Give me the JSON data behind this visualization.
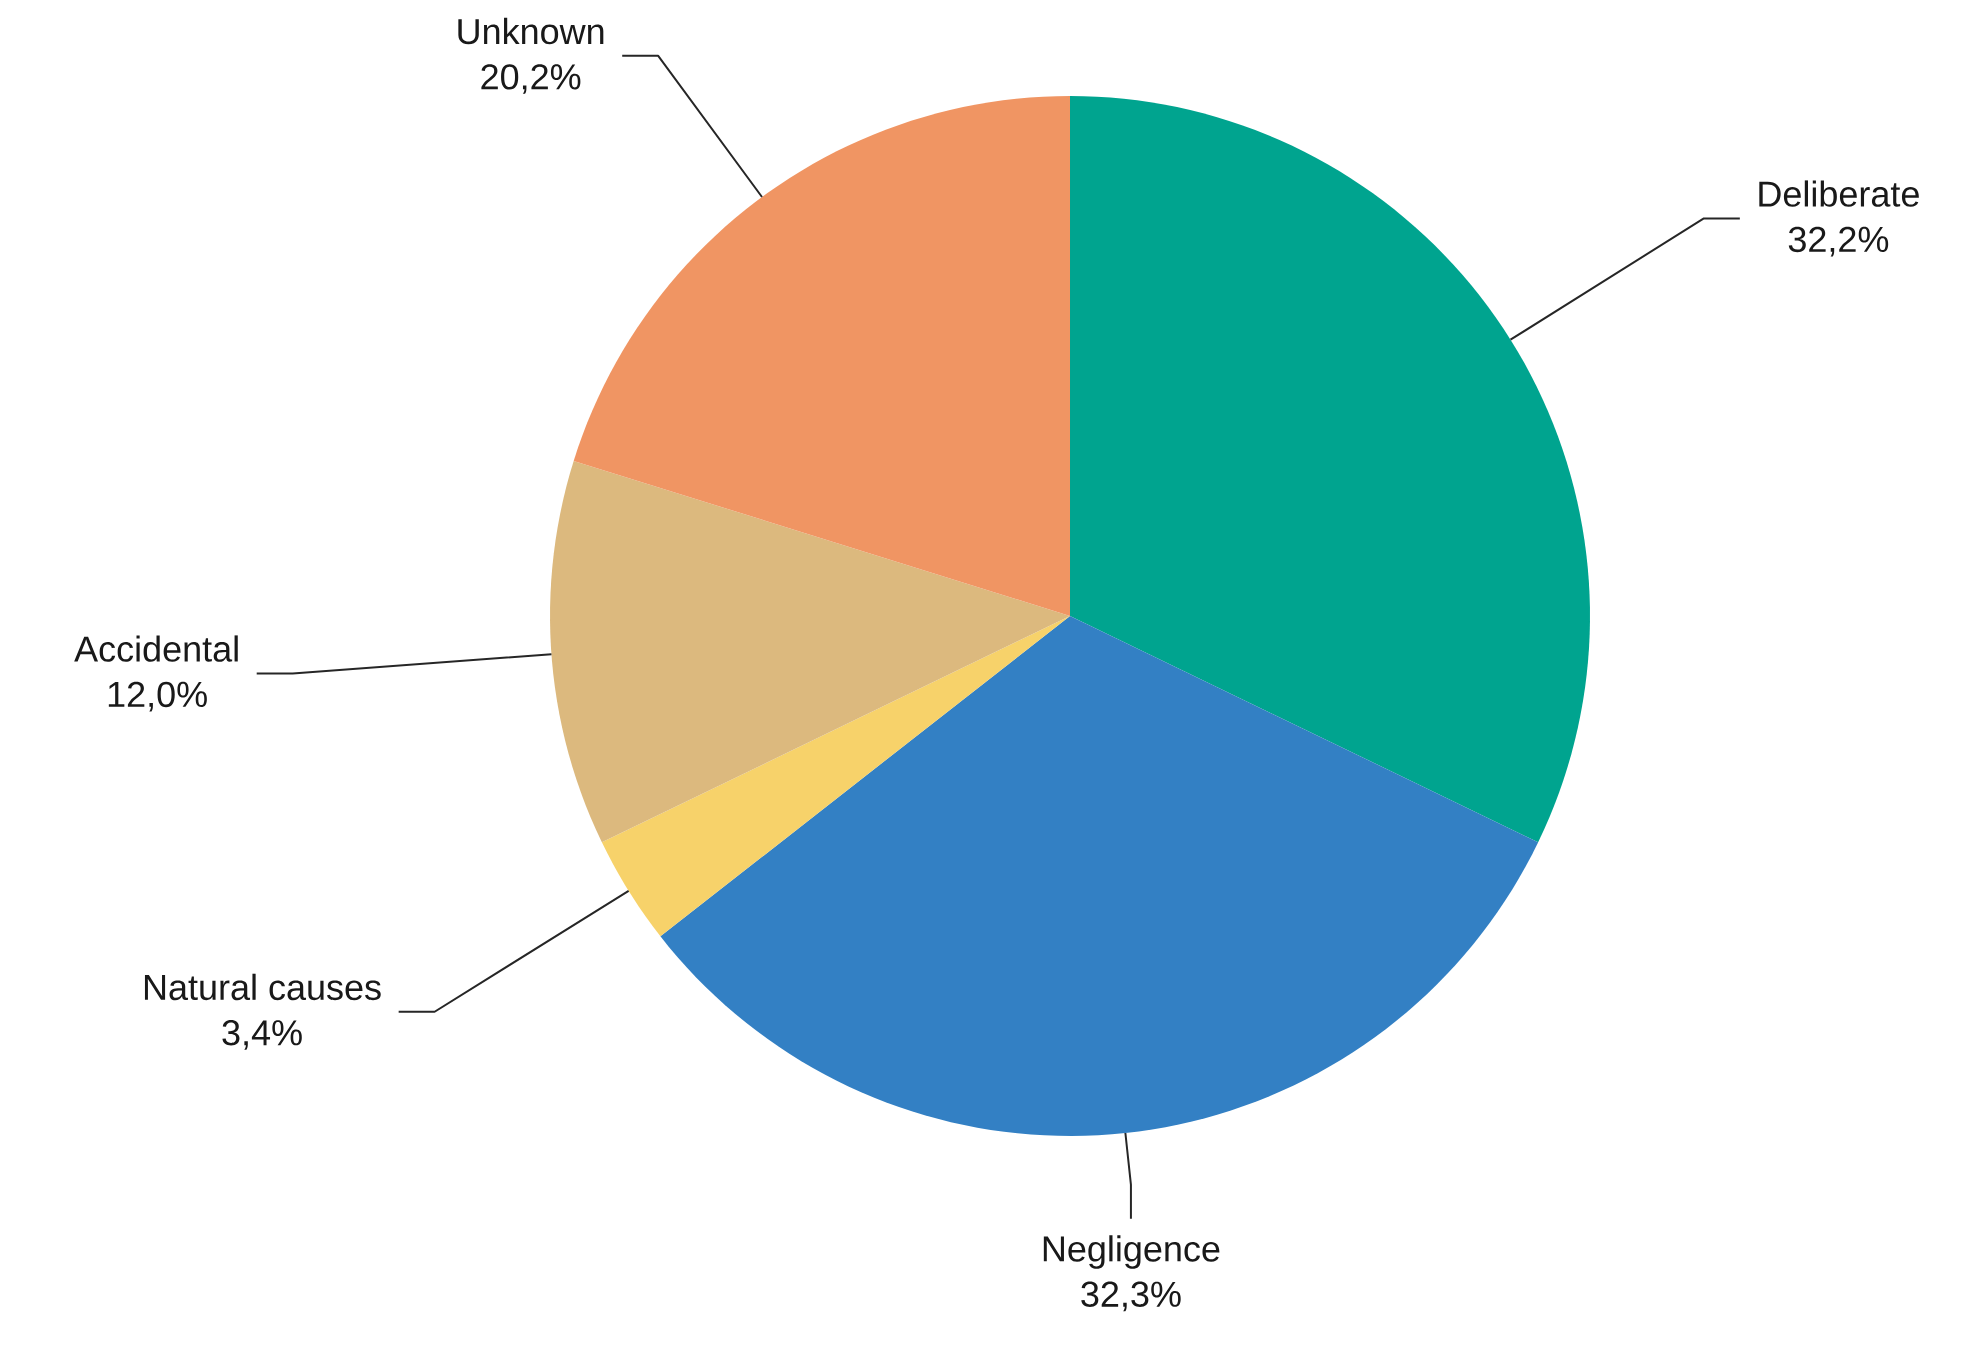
{
  "chart_data": {
    "type": "pie",
    "categories": [
      "Deliberate",
      "Negligence",
      "Natural causes",
      "Accidental",
      "Unknown"
    ],
    "values": [
      32.2,
      32.3,
      3.4,
      12.0,
      20.2
    ],
    "value_labels": [
      "32,2%",
      "32,3%",
      "3,4%",
      "12,0%",
      "20,2%"
    ],
    "colors": [
      "#00a48f",
      "#3380c4",
      "#f7d26a",
      "#dcb97e",
      "#f09563"
    ]
  }
}
